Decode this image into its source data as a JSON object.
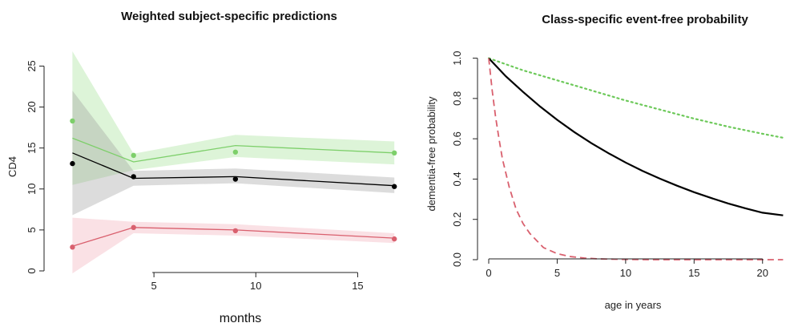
{
  "chart_data": [
    {
      "type": "line",
      "title": "Weighted subject-specific predictions",
      "xlabel": "months",
      "ylabel": "CD4",
      "xlim": [
        0,
        17.5
      ],
      "ylim": [
        0,
        27
      ],
      "x_ticks": [
        5,
        10,
        15
      ],
      "y_ticks": [
        0,
        5,
        10,
        15,
        20,
        25
      ],
      "series": [
        {
          "color": "#7dcf6a",
          "band_color": "#9fe08f",
          "line": {
            "x": [
              1,
              4,
              9,
              16.8
            ],
            "y": [
              16.2,
              13.3,
              15.3,
              14.4
            ]
          },
          "points": {
            "x": [
              1,
              4,
              9,
              16.8
            ],
            "y": [
              18.3,
              14.1,
              14.5,
              14.4
            ]
          },
          "lower": [
            10.5,
            12.3,
            13.9,
            13.0
          ],
          "upper": [
            26.8,
            14.3,
            16.6,
            15.8
          ]
        },
        {
          "color": "#000000",
          "band_color": "#9a9a9a",
          "line": {
            "x": [
              1,
              4,
              9,
              16.8
            ],
            "y": [
              14.4,
              11.3,
              11.5,
              10.4
            ]
          },
          "points": {
            "x": [
              1,
              4,
              9,
              16.8
            ],
            "y": [
              13.1,
              11.5,
              11.2,
              10.3
            ]
          },
          "lower": [
            6.8,
            10.4,
            10.7,
            9.5
          ],
          "upper": [
            22.0,
            12.2,
            12.5,
            11.4
          ]
        },
        {
          "color": "#d9606e",
          "band_color": "#f0a8b4",
          "line": {
            "x": [
              1,
              4,
              9,
              16.8
            ],
            "y": [
              3.0,
              5.3,
              5.0,
              4.0
            ]
          },
          "points": {
            "x": [
              1,
              4,
              9,
              16.8
            ],
            "y": [
              2.9,
              5.3,
              4.9,
              3.9
            ]
          },
          "lower": [
            -0.3,
            4.6,
            4.3,
            3.4
          ],
          "upper": [
            6.5,
            6.0,
            5.7,
            4.6
          ]
        }
      ]
    },
    {
      "type": "line",
      "title": "Class-specific event-free probability",
      "xlabel": "age in years",
      "ylabel": "dementia-free probability",
      "xlim": [
        0,
        21.5
      ],
      "ylim": [
        0,
        1.05
      ],
      "x_ticks": [
        0,
        5,
        10,
        15,
        20
      ],
      "y_ticks": [
        0.0,
        0.2,
        0.4,
        0.6,
        0.8,
        1.0
      ],
      "y_tick_labels": [
        "0.0",
        "0.2",
        "0.4",
        "0.6",
        "0.8",
        "1.0"
      ],
      "series": [
        {
          "color": "#6dc95a",
          "style": "dotted",
          "x": [
            0,
            2.5,
            5,
            7.5,
            10,
            12.5,
            15,
            17.5,
            20,
            21.5
          ],
          "y": [
            1.0,
            0.94,
            0.89,
            0.84,
            0.79,
            0.745,
            0.7,
            0.66,
            0.625,
            0.605
          ]
        },
        {
          "color": "#000000",
          "style": "solid",
          "x": [
            0,
            1.25,
            2.5,
            3.75,
            5,
            6.25,
            7.5,
            8.75,
            10,
            11.25,
            12.5,
            13.75,
            15,
            16.25,
            17.5,
            18.75,
            20,
            21.5
          ],
          "y": [
            1.0,
            0.91,
            0.833,
            0.76,
            0.694,
            0.633,
            0.578,
            0.528,
            0.482,
            0.44,
            0.402,
            0.367,
            0.335,
            0.306,
            0.279,
            0.255,
            0.233,
            0.22
          ]
        },
        {
          "color": "#d9606e",
          "style": "dashed",
          "x": [
            0,
            0.25,
            0.5,
            0.75,
            1,
            1.5,
            2,
            2.5,
            3,
            4,
            5,
            6,
            7,
            8,
            10,
            12,
            15,
            18,
            21.5
          ],
          "y": [
            1.0,
            0.84,
            0.71,
            0.6,
            0.5,
            0.36,
            0.25,
            0.18,
            0.13,
            0.06,
            0.03,
            0.015,
            0.008,
            0.004,
            0.001,
            0.0,
            0.0,
            0.0,
            0.0
          ]
        }
      ]
    }
  ]
}
